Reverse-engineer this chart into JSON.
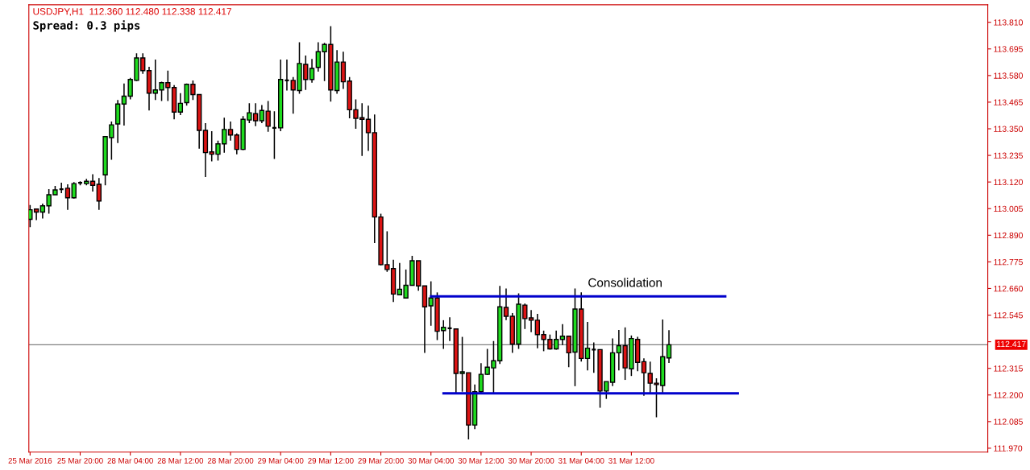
{
  "chart_data": {
    "type": "candlestick",
    "title": "USDJPY,H1  112.360 112.480 112.338 112.417",
    "subtitle": "Spread: 0.3 pips",
    "categories": [
      "25 Mar 2016",
      null,
      null,
      null,
      null,
      null,
      null,
      null,
      "25 Mar 20:00",
      null,
      null,
      null,
      null,
      null,
      null,
      null,
      "28 Mar 04:00",
      null,
      null,
      null,
      null,
      null,
      null,
      null,
      "28 Mar 12:00",
      null,
      null,
      null,
      null,
      null,
      null,
      null,
      "28 Mar 20:00",
      null,
      null,
      null,
      null,
      null,
      null,
      null,
      "29 Mar 04:00",
      null,
      null,
      null,
      null,
      null,
      null,
      null,
      "29 Mar 12:00",
      null,
      null,
      null,
      null,
      null,
      null,
      null,
      "29 Mar 20:00",
      null,
      null,
      null,
      null,
      null,
      null,
      null,
      "30 Mar 04:00",
      null,
      null,
      null,
      null,
      null,
      null,
      null,
      "30 Mar 12:00",
      null,
      null,
      null,
      null,
      null,
      null,
      null,
      "30 Mar 20:00",
      null,
      null,
      null,
      null,
      null,
      null,
      null,
      "31 Mar 04:00",
      null,
      null,
      null,
      null,
      null,
      null,
      null,
      "31 Mar 12:00",
      null,
      null,
      null,
      null,
      null,
      null,
      null,
      null,
      null,
      null,
      null,
      null,
      null,
      null,
      null,
      null,
      null,
      null,
      null,
      null,
      null,
      null,
      null,
      null,
      null,
      null,
      null,
      null,
      null,
      null,
      null,
      null,
      null,
      null,
      null,
      null,
      null,
      null,
      null,
      null,
      null,
      null,
      null,
      null,
      null,
      null,
      null,
      null,
      null,
      null,
      null,
      null,
      null,
      null,
      null,
      null
    ],
    "ohlc": [
      [
        112.959,
        113.021,
        112.925,
        113.0
      ],
      [
        113.003,
        113.003,
        112.955,
        112.99
      ],
      [
        112.99,
        113.027,
        112.962,
        113.017
      ],
      [
        113.017,
        113.089,
        112.983,
        113.065
      ],
      [
        113.065,
        113.103,
        113.065,
        113.086
      ],
      [
        113.089,
        113.117,
        113.072,
        113.089
      ],
      [
        113.093,
        113.11,
        113.0,
        113.052
      ],
      [
        113.052,
        113.12,
        113.048,
        113.113
      ],
      [
        113.117,
        113.123,
        113.106,
        113.117
      ],
      [
        113.113,
        113.134,
        113.106,
        113.123
      ],
      [
        113.123,
        113.154,
        113.079,
        113.106
      ],
      [
        113.11,
        113.137,
        113.0,
        113.038
      ],
      [
        113.151,
        113.319,
        113.106,
        113.316
      ],
      [
        113.312,
        113.381,
        113.216,
        113.367
      ],
      [
        113.371,
        113.474,
        113.288,
        113.457
      ],
      [
        113.457,
        113.546,
        113.364,
        113.491
      ],
      [
        113.491,
        113.57,
        113.477,
        113.563
      ],
      [
        113.559,
        113.676,
        113.556,
        113.656
      ],
      [
        113.656,
        113.676,
        113.587,
        113.601
      ],
      [
        113.601,
        113.618,
        113.429,
        113.504
      ],
      [
        113.504,
        113.649,
        113.474,
        113.518
      ],
      [
        113.518,
        113.553,
        113.47,
        113.549
      ],
      [
        113.549,
        113.601,
        113.47,
        113.528
      ],
      [
        113.528,
        113.539,
        113.391,
        113.422
      ],
      [
        113.422,
        113.504,
        113.409,
        113.46
      ],
      [
        113.463,
        113.546,
        113.45,
        113.542
      ],
      [
        113.542,
        113.559,
        113.474,
        113.498
      ],
      [
        113.498,
        113.498,
        113.264,
        113.343
      ],
      [
        113.343,
        113.374,
        113.141,
        113.247
      ],
      [
        113.25,
        113.34,
        113.209,
        113.24
      ],
      [
        113.24,
        113.299,
        113.213,
        113.285
      ],
      [
        113.285,
        113.398,
        113.247,
        113.347
      ],
      [
        113.347,
        113.381,
        113.299,
        113.323
      ],
      [
        113.323,
        113.33,
        113.24,
        113.261
      ],
      [
        113.261,
        113.405,
        113.258,
        113.391
      ],
      [
        113.388,
        113.46,
        113.374,
        113.419
      ],
      [
        113.415,
        113.46,
        113.361,
        113.385
      ],
      [
        113.385,
        113.453,
        113.374,
        113.429
      ],
      [
        113.426,
        113.47,
        113.337,
        113.361
      ],
      [
        113.354,
        113.426,
        113.22,
        113.354
      ],
      [
        113.354,
        113.649,
        113.34,
        113.563
      ],
      [
        113.559,
        113.649,
        113.515,
        113.559
      ],
      [
        113.559,
        113.573,
        113.415,
        113.518
      ],
      [
        113.515,
        113.724,
        113.501,
        113.632
      ],
      [
        113.628,
        113.666,
        113.518,
        113.563
      ],
      [
        113.563,
        113.652,
        113.549,
        113.611
      ],
      [
        113.615,
        113.724,
        113.597,
        113.683
      ],
      [
        113.683,
        113.721,
        113.556,
        113.714
      ],
      [
        113.714,
        113.793,
        113.467,
        113.518
      ],
      [
        113.515,
        113.69,
        113.501,
        113.638
      ],
      [
        113.638,
        113.683,
        113.522,
        113.553
      ],
      [
        113.556,
        113.573,
        113.395,
        113.432
      ],
      [
        113.432,
        113.477,
        113.35,
        113.395
      ],
      [
        113.398,
        113.46,
        113.233,
        113.391
      ],
      [
        113.391,
        113.45,
        113.254,
        113.333
      ],
      [
        113.333,
        113.412,
        112.856,
        112.969
      ],
      [
        112.969,
        112.983,
        112.76,
        112.763
      ],
      [
        112.763,
        112.907,
        112.732,
        112.742
      ],
      [
        112.746,
        112.784,
        112.602,
        112.636
      ],
      [
        112.633,
        112.77,
        112.633,
        112.657
      ],
      [
        112.619,
        112.742,
        112.619,
        112.674
      ],
      [
        112.674,
        112.801,
        112.674,
        112.78
      ],
      [
        112.78,
        112.78,
        112.65,
        112.671
      ],
      [
        112.671,
        112.671,
        112.382,
        112.581
      ],
      [
        112.585,
        112.691,
        112.499,
        112.619
      ],
      [
        112.619,
        112.643,
        112.437,
        112.475
      ],
      [
        112.478,
        112.523,
        112.399,
        112.492
      ],
      [
        112.488,
        112.536,
        112.433,
        112.488
      ],
      [
        112.485,
        112.485,
        112.21,
        112.293
      ],
      [
        112.293,
        112.451,
        112.214,
        112.3
      ],
      [
        112.296,
        112.296,
        112.008,
        112.07
      ],
      [
        112.07,
        112.245,
        112.052,
        112.214
      ],
      [
        112.214,
        112.337,
        112.203,
        112.289
      ],
      [
        112.289,
        112.399,
        112.286,
        112.32
      ],
      [
        112.317,
        112.433,
        112.203,
        112.348
      ],
      [
        112.348,
        112.671,
        112.334,
        112.581
      ],
      [
        112.578,
        112.66,
        112.523,
        112.54
      ],
      [
        112.54,
        112.554,
        112.382,
        112.42
      ],
      [
        112.42,
        112.639,
        112.399,
        112.592
      ],
      [
        112.588,
        112.595,
        112.485,
        112.53
      ],
      [
        112.533,
        112.567,
        112.471,
        112.523
      ],
      [
        112.523,
        112.55,
        112.402,
        112.461
      ],
      [
        112.461,
        112.478,
        112.389,
        112.44
      ],
      [
        112.44,
        112.461,
        112.396,
        112.399
      ],
      [
        112.399,
        112.478,
        112.396,
        112.44
      ],
      [
        112.44,
        112.506,
        112.416,
        112.454
      ],
      [
        112.454,
        112.454,
        112.32,
        112.382
      ],
      [
        112.385,
        112.66,
        112.238,
        112.571
      ],
      [
        112.571,
        112.643,
        112.344,
        112.358
      ],
      [
        112.358,
        112.516,
        112.306,
        112.402
      ],
      [
        112.396,
        112.427,
        112.296,
        112.396
      ],
      [
        112.396,
        112.396,
        112.145,
        112.217
      ],
      [
        112.217,
        112.258,
        112.183,
        112.258
      ],
      [
        112.255,
        112.444,
        112.238,
        112.382
      ],
      [
        112.382,
        112.481,
        112.306,
        112.413
      ],
      [
        112.413,
        112.492,
        112.265,
        112.317
      ],
      [
        112.313,
        112.457,
        112.282,
        112.444
      ],
      [
        112.44,
        112.451,
        112.303,
        112.341
      ],
      [
        112.344,
        112.358,
        112.197,
        112.296
      ],
      [
        112.293,
        112.344,
        112.21,
        112.251
      ],
      [
        112.251,
        112.272,
        112.104,
        112.245
      ],
      [
        112.241,
        112.526,
        112.21,
        112.365
      ],
      [
        112.36,
        112.48,
        112.338,
        112.417
      ],
      null,
      null,
      null,
      null,
      null,
      null,
      null,
      null,
      null,
      null,
      null,
      null,
      null,
      null,
      null,
      null,
      null,
      null,
      null,
      null,
      null,
      null,
      null,
      null,
      null,
      null,
      null,
      null,
      null,
      null,
      null,
      null,
      null,
      null,
      null,
      null,
      null,
      null,
      null,
      null,
      null,
      null,
      null,
      null,
      null,
      null,
      null,
      null,
      null,
      null
    ],
    "colors": [
      "#1fdc1f",
      "#dc1414",
      "#1fdc1f",
      "#1fdc1f",
      "#1fdc1f",
      "#000000",
      "#dc1414",
      "#1fdc1f",
      "#000000",
      "#1fdc1f",
      "#dc1414",
      "#dc1414",
      "#1fdc1f",
      "#1fdc1f",
      "#1fdc1f",
      "#1fdc1f",
      "#1fdc1f",
      "#1fdc1f",
      "#dc1414",
      "#dc1414",
      "#1fdc1f",
      "#1fdc1f",
      "#dc1414",
      "#dc1414",
      "#1fdc1f",
      "#1fdc1f",
      "#dc1414",
      "#dc1414",
      "#dc1414",
      "#dc1414",
      "#1fdc1f",
      "#1fdc1f",
      "#dc1414",
      "#dc1414",
      "#1fdc1f",
      "#1fdc1f",
      "#dc1414",
      "#1fdc1f",
      "#dc1414",
      "#000000",
      "#1fdc1f",
      "#000000",
      "#dc1414",
      "#1fdc1f",
      "#dc1414",
      "#1fdc1f",
      "#1fdc1f",
      "#1fdc1f",
      "#dc1414",
      "#1fdc1f",
      "#dc1414",
      "#dc1414",
      "#dc1414",
      "#dc1414",
      "#dc1414",
      "#dc1414",
      "#dc1414",
      "#dc1414",
      "#dc1414",
      "#1fdc1f",
      "#1fdc1f",
      "#1fdc1f",
      "#dc1414",
      "#dc1414",
      "#1fdc1f",
      "#dc1414",
      "#1fdc1f",
      "#000000",
      "#dc1414",
      "#1fdc1f",
      "#dc1414",
      "#1fdc1f",
      "#1fdc1f",
      "#1fdc1f",
      "#1fdc1f",
      "#1fdc1f",
      "#dc1414",
      "#dc1414",
      "#1fdc1f",
      "#dc1414",
      "#dc1414",
      "#dc1414",
      "#dc1414",
      "#dc1414",
      "#1fdc1f",
      "#1fdc1f",
      "#dc1414",
      "#1fdc1f",
      "#dc1414",
      "#1fdc1f",
      "#000000",
      "#dc1414",
      "#1fdc1f",
      "#1fdc1f",
      "#1fdc1f",
      "#dc1414",
      "#1fdc1f",
      "#dc1414",
      "#dc1414",
      "#dc1414",
      "#dc1414",
      "#1fdc1f",
      "#1fdc1f",
      null,
      null,
      null,
      null,
      null,
      null,
      null,
      null,
      null,
      null,
      null,
      null,
      null,
      null,
      null,
      null,
      null,
      null,
      null,
      null,
      null,
      null,
      null,
      null,
      null,
      null,
      null,
      null,
      null,
      null,
      null,
      null,
      null,
      null,
      null,
      null,
      null,
      null,
      null,
      null,
      null,
      null,
      null,
      null,
      null,
      null,
      null,
      null,
      null,
      null
    ],
    "series": [
      {
        "type": "line",
        "color": "#0000cc",
        "values": [
          null,
          null,
          null,
          null,
          null,
          null,
          null,
          null,
          null,
          null,
          null,
          null,
          null,
          null,
          null,
          null,
          null,
          null,
          null,
          null,
          null,
          null,
          null,
          null,
          null,
          null,
          null,
          null,
          null,
          null,
          null,
          null,
          null,
          null,
          null,
          null,
          null,
          null,
          null,
          null,
          null,
          null,
          null,
          null,
          null,
          null,
          null,
          null,
          null,
          null,
          null,
          null,
          null,
          null,
          null,
          null,
          null,
          null,
          null,
          null,
          null,
          null,
          null,
          null,
          112.626,
          112.626,
          112.626,
          112.626,
          112.626,
          112.626,
          112.626,
          112.626,
          112.626,
          112.626,
          112.626,
          112.626,
          112.626,
          112.626,
          112.626,
          112.626,
          112.626,
          112.626,
          112.626,
          112.626,
          112.626,
          112.626,
          112.626,
          112.626,
          112.626,
          112.626,
          112.626,
          112.626,
          112.626,
          112.626,
          112.626,
          112.626,
          112.626,
          112.626,
          112.626,
          112.626,
          112.626,
          112.626,
          112.626,
          112.626,
          112.626,
          112.626,
          112.626,
          112.626,
          112.626,
          112.626,
          112.626,
          112.626,
          null,
          null,
          null,
          null,
          null,
          null,
          null,
          null,
          null,
          null,
          null,
          null,
          null,
          null,
          null,
          null,
          null,
          null,
          null,
          null,
          null,
          null,
          null,
          null,
          null,
          null,
          null,
          null,
          null,
          null,
          null,
          null,
          null,
          null,
          null,
          null,
          null,
          null,
          null,
          null,
          null
        ]
      },
      {
        "type": "line",
        "color": "#0000cc",
        "values": [
          null,
          null,
          null,
          null,
          null,
          null,
          null,
          null,
          null,
          null,
          null,
          null,
          null,
          null,
          null,
          null,
          null,
          null,
          null,
          null,
          null,
          null,
          null,
          null,
          null,
          null,
          null,
          null,
          null,
          null,
          null,
          null,
          null,
          null,
          null,
          null,
          null,
          null,
          null,
          null,
          null,
          null,
          null,
          null,
          null,
          null,
          null,
          null,
          null,
          null,
          null,
          null,
          null,
          null,
          null,
          null,
          null,
          null,
          null,
          null,
          null,
          null,
          null,
          null,
          null,
          null,
          112.207,
          112.207,
          112.207,
          112.207,
          112.207,
          112.207,
          112.207,
          112.207,
          112.207,
          112.207,
          112.207,
          112.207,
          112.207,
          112.207,
          112.207,
          112.207,
          112.207,
          112.207,
          112.207,
          112.207,
          112.207,
          112.207,
          112.207,
          112.207,
          112.207,
          112.207,
          112.207,
          112.207,
          112.207,
          112.207,
          112.207,
          112.207,
          112.207,
          112.207,
          112.207,
          112.207,
          112.207,
          112.207,
          112.207,
          112.207,
          112.207,
          112.207,
          112.207,
          112.207,
          112.207,
          112.207,
          112.207,
          112.207,
          null,
          null,
          null,
          null,
          null,
          null,
          null,
          null,
          null,
          null,
          null,
          null,
          null,
          null,
          null,
          null,
          null,
          null,
          null,
          null,
          null,
          null,
          null,
          null,
          null,
          null,
          null,
          null,
          null,
          null,
          null,
          null,
          null,
          null,
          null,
          null,
          null,
          null,
          null
        ]
      }
    ],
    "annotations": [
      "Consolidation"
    ],
    "ref_lines": [
      {
        "axis": "y",
        "value": 112.417,
        "label": "112.417",
        "color": "#808080"
      }
    ],
    "ylim": [
      111.953,
      113.886
    ],
    "yticks": [
      {
        "value": 111.97,
        "label": "111.970"
      },
      112.085,
      {
        "value": 112.2,
        "label": "112.200"
      },
      112.315,
      {
        "value": 112.43,
        "label": null
      },
      112.545,
      {
        "value": 112.66,
        "label": "112.660"
      },
      112.775,
      {
        "value": 112.89,
        "label": "112.890"
      },
      113.005,
      {
        "value": 113.12,
        "label": "113.120"
      },
      113.235,
      {
        "value": 113.35,
        "label": "113.350"
      },
      113.465,
      {
        "value": 113.58,
        "label": "113.580"
      },
      113.695,
      {
        "value": 113.81,
        "label": "113.810"
      }
    ],
    "grid": false,
    "legend": false
  }
}
